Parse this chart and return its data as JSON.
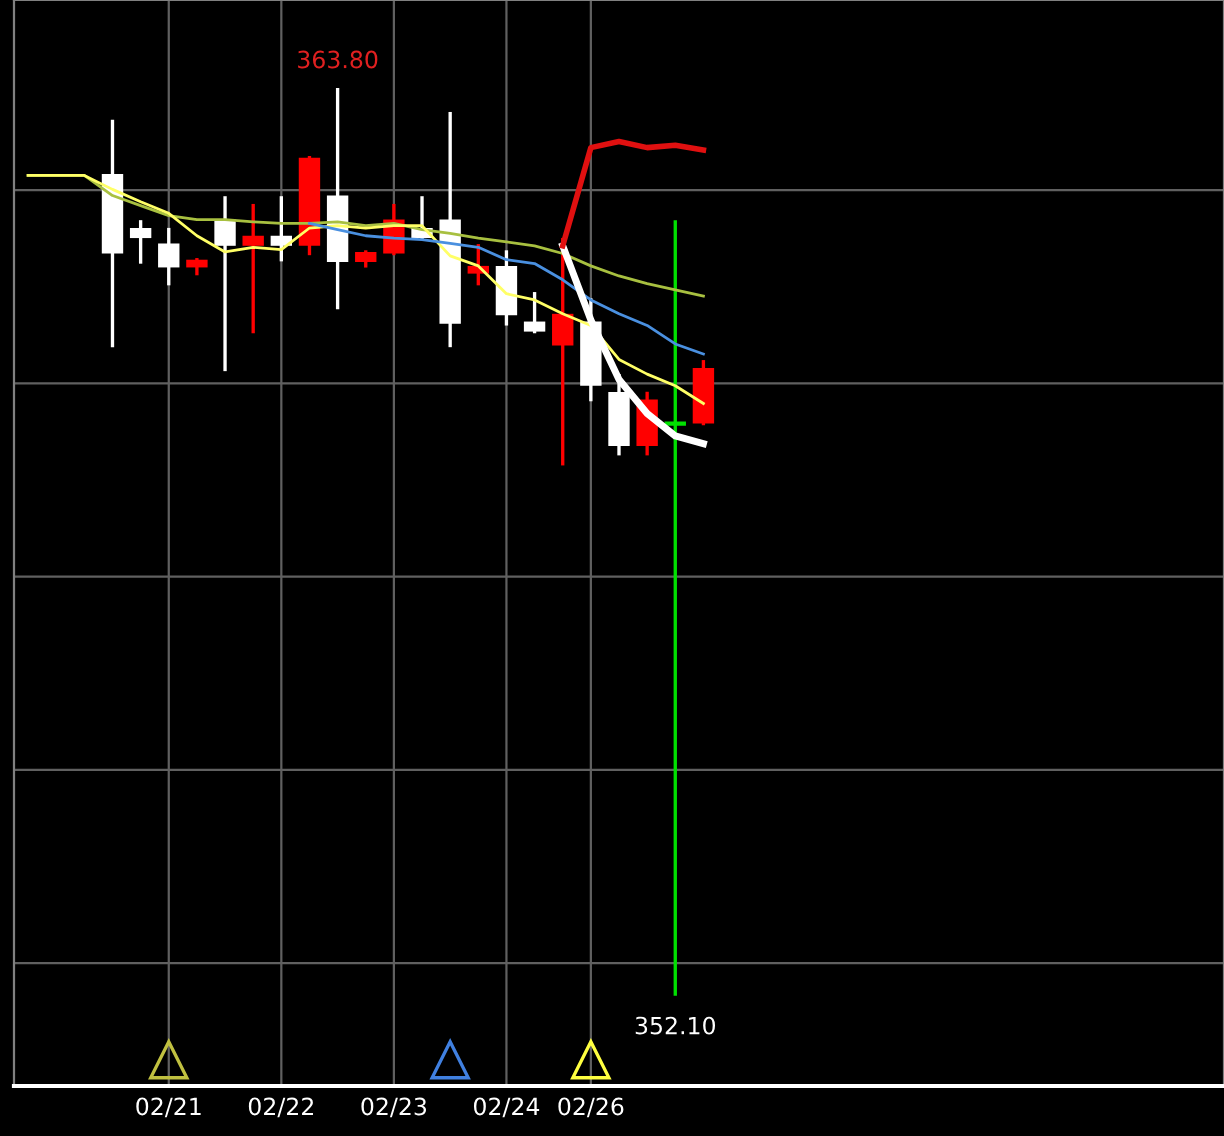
{
  "chart_data": {
    "type": "candlestick",
    "categories": [
      null,
      null,
      null,
      null,
      null,
      "02/21",
      null,
      null,
      null,
      "02/22",
      null,
      null,
      null,
      "02/23",
      null,
      null,
      null,
      "02/24",
      null,
      null,
      "02/26",
      null,
      null,
      null,
      null,
      null,
      null,
      null,
      null,
      null,
      null,
      null,
      null,
      null,
      null,
      null,
      null,
      null,
      null,
      null,
      null,
      null,
      null
    ],
    "ohlc": [
      null,
      null,
      null,
      [
        362.71,
        363.39,
        360.49,
        361.68
      ],
      [
        362.01,
        362.09,
        361.57,
        361.88
      ],
      [
        361.81,
        361.99,
        361.29,
        361.5
      ],
      [
        361.5,
        361.6,
        361.42,
        361.6
      ],
      [
        362.12,
        362.4,
        360.18,
        361.78
      ],
      [
        361.78,
        362.3,
        360.67,
        361.91
      ],
      [
        361.91,
        362.4,
        361.6,
        361.78
      ],
      [
        361.78,
        362.92,
        361.68,
        362.92
      ],
      [
        362.43,
        363.8,
        360.98,
        361.57
      ],
      [
        361.57,
        361.7,
        361.52,
        361.7
      ],
      [
        361.68,
        362.3,
        361.68,
        362.12
      ],
      [
        362.01,
        362.4,
        361.88,
        361.88
      ],
      [
        362.12,
        363.49,
        360.49,
        360.77
      ],
      [
        361.42,
        361.78,
        361.29,
        361.52
      ],
      [
        361.52,
        361.7,
        360.77,
        360.88
      ],
      [
        360.8,
        361.16,
        360.67,
        360.67
      ],
      [
        360.49,
        361.86,
        358.96,
        360.9
      ],
      [
        360.8,
        361.08,
        359.79,
        359.97
      ],
      [
        359.89,
        360.1,
        359.09,
        359.19
      ],
      [
        359.19,
        359.87,
        359.09,
        359.79
      ],
      [
        359.48,
        362.09,
        352.1,
        359.48
      ],
      [
        359.48,
        360.28,
        359.48,
        360.2
      ],
      null,
      null,
      null,
      null,
      null,
      null,
      null,
      null,
      null,
      null,
      null,
      null,
      null,
      null,
      null,
      null,
      null,
      null
    ],
    "colors": [
      null,
      null,
      null,
      "#ffffff",
      "#ffffff",
      "#ffffff",
      "#ff0000",
      "#ffffff",
      "#ff0000",
      "#ffffff",
      "#ff0000",
      "#ffffff",
      "#ff0000",
      "#ff0000",
      "#ffffff",
      "#ffffff",
      "#ff0000",
      "#ffffff",
      "#ffffff",
      "#ff0000",
      "#ffffff",
      "#ffffff",
      "#ff0000",
      "#00e000",
      "#ff0000",
      null,
      null,
      null,
      null,
      null,
      null,
      null,
      null,
      null,
      null,
      null,
      null,
      null,
      null,
      null,
      null,
      null,
      null
    ],
    "series": [
      {
        "type": "line",
        "color": "#a8c040",
        "values": [
          362.69,
          362.69,
          362.69,
          362.43,
          362.3,
          362.17,
          362.12,
          362.12,
          362.09,
          362.07,
          362.07,
          362.09,
          362.04,
          362.07,
          361.99,
          361.94,
          361.88,
          361.83,
          361.78,
          361.68,
          361.52,
          361.39,
          361.29,
          361.21,
          361.13,
          null,
          null,
          null,
          null,
          null,
          null,
          null,
          null,
          null,
          null,
          null,
          null,
          null,
          null,
          null,
          null,
          null,
          null
        ]
      },
      {
        "type": "line",
        "color": "#ffff66",
        "values": [
          362.69,
          362.69,
          362.69,
          362.51,
          362.35,
          362.2,
          361.91,
          361.7,
          361.76,
          361.73,
          362.01,
          362.04,
          362.01,
          362.04,
          362.04,
          361.65,
          361.52,
          361.16,
          361.08,
          360.9,
          360.75,
          360.31,
          360.12,
          359.97,
          359.74,
          null,
          null,
          null,
          null,
          null,
          null,
          null,
          null,
          null,
          null,
          null,
          null,
          null,
          null,
          null,
          null,
          null,
          null
        ]
      },
      {
        "type": "line",
        "color": "#4a90e0",
        "values": [
          null,
          null,
          null,
          null,
          null,
          null,
          null,
          null,
          null,
          null,
          362.07,
          361.99,
          361.91,
          361.88,
          361.86,
          361.81,
          361.76,
          361.6,
          361.55,
          361.34,
          361.08,
          360.9,
          360.75,
          360.51,
          360.38,
          null,
          null,
          null,
          null,
          null,
          null,
          null,
          null,
          null,
          null,
          null,
          null,
          null,
          null,
          null,
          null,
          null,
          null
        ]
      },
      {
        "type": "line",
        "color": "#ffffff",
        "values": [
          null,
          null,
          null,
          null,
          null,
          null,
          null,
          null,
          null,
          null,
          null,
          null,
          null,
          null,
          null,
          null,
          null,
          null,
          null,
          361.78,
          360.82,
          360.05,
          359.61,
          359.32,
          359.22,
          null,
          null,
          null,
          null,
          null,
          null,
          null,
          null,
          null,
          null,
          null,
          null,
          null,
          null,
          null,
          null,
          null,
          null
        ]
      },
      {
        "type": "line",
        "color": "#e01010",
        "values": [
          null,
          null,
          null,
          null,
          null,
          null,
          null,
          null,
          null,
          null,
          null,
          null,
          null,
          null,
          null,
          null,
          null,
          null,
          null,
          361.78,
          363.05,
          363.13,
          363.05,
          363.08,
          363.02,
          null,
          null,
          null,
          null,
          null,
          null,
          null,
          null,
          null,
          null,
          null,
          null,
          null,
          null,
          null,
          null,
          null,
          null
        ]
      },
      {
        "type": "scatter",
        "marker": "triangle",
        "color": "#c0c040",
        "values": [
          null,
          null,
          null,
          null,
          null,
          351.25,
          null,
          null,
          null,
          null,
          null,
          null,
          null,
          null,
          null,
          null,
          null,
          null,
          null,
          null,
          null,
          null,
          null,
          null,
          null,
          null,
          null,
          null,
          null,
          null,
          null,
          null,
          null,
          null,
          null,
          null,
          null,
          null,
          null,
          null,
          null,
          null,
          null
        ]
      },
      {
        "type": "scatter",
        "marker": "triangle",
        "color": "#4080e0",
        "values": [
          null,
          null,
          null,
          null,
          null,
          null,
          null,
          null,
          null,
          null,
          null,
          null,
          null,
          null,
          null,
          351.25,
          null,
          null,
          null,
          null,
          null,
          null,
          null,
          null,
          null,
          null,
          null,
          null,
          null,
          null,
          null,
          null,
          null,
          null,
          null,
          null,
          null,
          null,
          null,
          null,
          null,
          null,
          null
        ]
      },
      {
        "type": "scatter",
        "marker": "triangle",
        "color": "#ffff40",
        "values": [
          null,
          null,
          null,
          null,
          null,
          null,
          null,
          null,
          null,
          null,
          null,
          null,
          null,
          null,
          null,
          null,
          null,
          null,
          null,
          null,
          351.25,
          null,
          null,
          null,
          null,
          null,
          null,
          null,
          null,
          null,
          null,
          null,
          null,
          null,
          null,
          null,
          null,
          null,
          null,
          null,
          null,
          null,
          null
        ]
      }
    ],
    "ylim": [
      350.91,
      364.96
    ],
    "yticks": [
      {
        "value": 352.5,
        "label": null
      },
      {
        "value": 355,
        "label": null
      },
      {
        "value": 357.5,
        "label": null
      },
      {
        "value": 360,
        "label": null
      },
      {
        "value": 362.5,
        "label": null
      }
    ],
    "grid": true,
    "tick_labels": "x",
    "annotations": [
      {
        "text": "363.80",
        "y": 363.8
      },
      {
        "text": "352.10",
        "y": 352.1
      }
    ]
  }
}
